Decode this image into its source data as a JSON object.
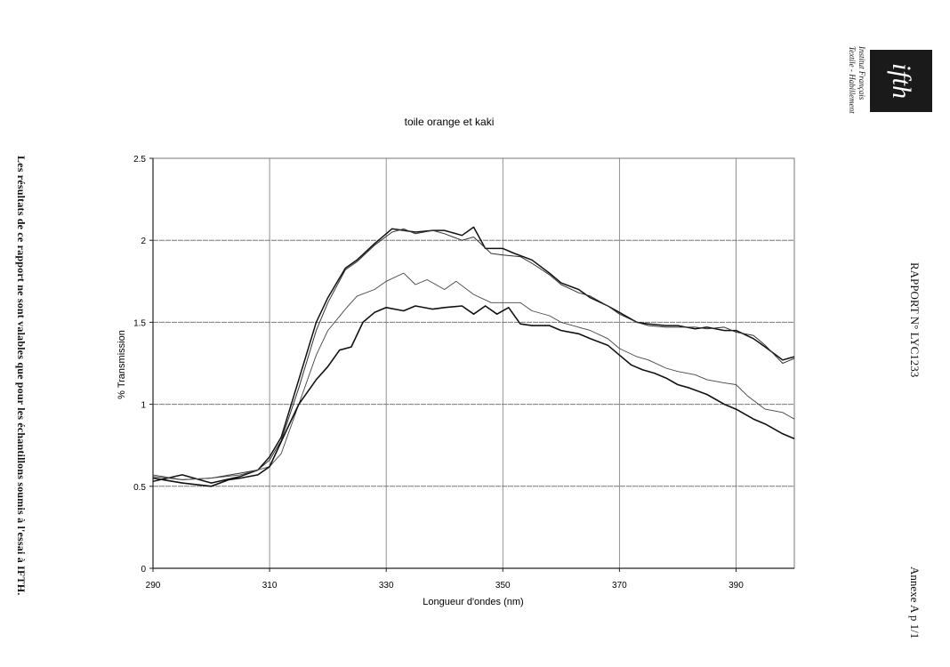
{
  "side_note": "Les résultats de ce rapport  ne sont valables que pour les échantillons soumis à l'essai à IFTH.",
  "report_number": "RAPPORT  N° LYC1233",
  "annex": "Annexe A p 1/1",
  "logo": {
    "mark": "ifth",
    "text_line1": "Institut Français",
    "text_line2": "Textile - Habillement"
  },
  "chart_data": {
    "type": "line",
    "title": "toile orange et kaki",
    "xlabel": "Longueur d'ondes (nm)",
    "ylabel": "% Transmission",
    "xlim": [
      290,
      400
    ],
    "ylim": [
      0,
      2.5
    ],
    "xticks": [
      "290",
      "310",
      "330",
      "350",
      "370",
      "390"
    ],
    "yticks": [
      "0",
      "0.5",
      "1",
      "1.5",
      "2",
      "2.5"
    ],
    "grid": true,
    "legend": "none",
    "series": [
      {
        "name": "series-1",
        "x": [
          290,
          295,
          300,
          305,
          308,
          310,
          312,
          315,
          318,
          320,
          323,
          325,
          328,
          331,
          333,
          335,
          338,
          340,
          343,
          345,
          347,
          350,
          352,
          355,
          358,
          360,
          363,
          365,
          368,
          370,
          373,
          375,
          378,
          380,
          383,
          385,
          388,
          390,
          393,
          395,
          398,
          400
        ],
        "y": [
          0.53,
          0.57,
          0.52,
          0.56,
          0.6,
          0.68,
          0.8,
          1.15,
          1.5,
          1.65,
          1.83,
          1.88,
          1.98,
          2.07,
          2.06,
          2.05,
          2.06,
          2.06,
          2.03,
          2.08,
          1.95,
          1.95,
          1.92,
          1.88,
          1.8,
          1.74,
          1.7,
          1.65,
          1.6,
          1.56,
          1.5,
          1.49,
          1.48,
          1.48,
          1.46,
          1.47,
          1.45,
          1.45,
          1.4,
          1.35,
          1.27,
          1.29
        ]
      },
      {
        "name": "series-2",
        "x": [
          290,
          295,
          300,
          305,
          308,
          310,
          312,
          315,
          318,
          320,
          323,
          325,
          328,
          331,
          333,
          335,
          338,
          340,
          343,
          345,
          348,
          350,
          353,
          355,
          358,
          360,
          363,
          365,
          368,
          370,
          373,
          375,
          378,
          380,
          383,
          385,
          388,
          390,
          393,
          395,
          398,
          400
        ],
        "y": [
          0.56,
          0.54,
          0.55,
          0.58,
          0.6,
          0.66,
          0.78,
          1.1,
          1.45,
          1.62,
          1.82,
          1.87,
          1.97,
          2.05,
          2.07,
          2.04,
          2.06,
          2.04,
          2.0,
          2.02,
          1.92,
          1.91,
          1.9,
          1.86,
          1.79,
          1.73,
          1.68,
          1.66,
          1.6,
          1.55,
          1.5,
          1.48,
          1.47,
          1.47,
          1.47,
          1.46,
          1.47,
          1.44,
          1.42,
          1.36,
          1.25,
          1.28
        ]
      },
      {
        "name": "series-3",
        "x": [
          290,
          295,
          300,
          305,
          310,
          312,
          315,
          318,
          320,
          323,
          325,
          328,
          330,
          333,
          335,
          337,
          340,
          342,
          345,
          348,
          350,
          353,
          355,
          358,
          360,
          363,
          365,
          368,
          370,
          373,
          375,
          378,
          380,
          383,
          385,
          388,
          390,
          392,
          395,
          398,
          400
        ],
        "y": [
          0.57,
          0.54,
          0.55,
          0.57,
          0.62,
          0.7,
          1.0,
          1.3,
          1.45,
          1.58,
          1.66,
          1.7,
          1.75,
          1.8,
          1.73,
          1.76,
          1.7,
          1.75,
          1.67,
          1.62,
          1.62,
          1.62,
          1.57,
          1.54,
          1.5,
          1.47,
          1.45,
          1.4,
          1.34,
          1.29,
          1.27,
          1.22,
          1.2,
          1.18,
          1.15,
          1.13,
          1.12,
          1.05,
          0.97,
          0.95,
          0.91
        ]
      },
      {
        "name": "series-4",
        "x": [
          290,
          295,
          300,
          303,
          305,
          308,
          310,
          313,
          315,
          318,
          320,
          322,
          324,
          326,
          328,
          330,
          333,
          335,
          338,
          340,
          343,
          345,
          347,
          349,
          351,
          353,
          355,
          358,
          360,
          363,
          365,
          368,
          370,
          372,
          374,
          376,
          378,
          380,
          382,
          385,
          388,
          390,
          393,
          395,
          398,
          400
        ],
        "y": [
          0.55,
          0.52,
          0.5,
          0.54,
          0.55,
          0.57,
          0.62,
          0.85,
          1.0,
          1.15,
          1.23,
          1.33,
          1.35,
          1.5,
          1.56,
          1.59,
          1.57,
          1.6,
          1.58,
          1.59,
          1.6,
          1.55,
          1.6,
          1.55,
          1.59,
          1.49,
          1.48,
          1.48,
          1.45,
          1.43,
          1.4,
          1.36,
          1.3,
          1.24,
          1.21,
          1.19,
          1.16,
          1.12,
          1.1,
          1.06,
          1.0,
          0.97,
          0.91,
          0.88,
          0.82,
          0.79
        ]
      }
    ],
    "colors": {
      "series": [
        "#111111",
        "#333333",
        "#444444",
        "#111111"
      ],
      "grid": "#777777"
    }
  }
}
